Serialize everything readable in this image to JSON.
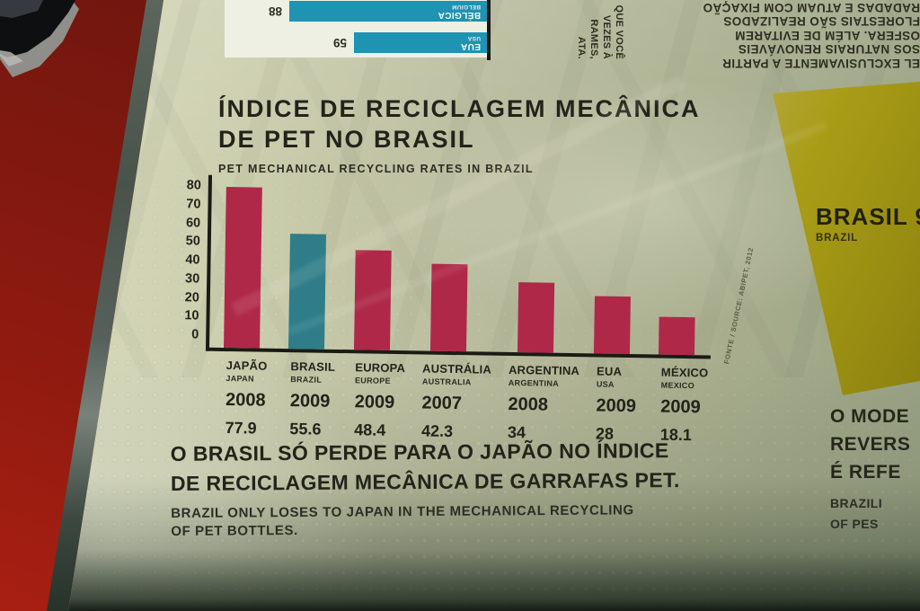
{
  "colors": {
    "panel_bg": "#c2c5a6",
    "bar_crimson": "#af2848",
    "bar_teal": "#2e7d89",
    "mini_bar_teal": "#1f93b2",
    "yellow_box": "#a89c16",
    "red_wall": "#8e1a10",
    "ink": "#23231b"
  },
  "title": {
    "line1": "ÍNDICE DE RECICLAGEM MECÂNICA",
    "line2": "DE PET NO BRASIL",
    "subtitle": "PET MECHANICAL RECYCLING RATES IN BRAZIL"
  },
  "chart_data": [
    {
      "type": "bar",
      "title": "ÍNDICE DE RECICLAGEM MECÂNICA DE PET NO BRASIL",
      "subtitle": "PET MECHANICAL RECYCLING RATES IN BRAZIL",
      "ylim": [
        0,
        80
      ],
      "yticks": [
        80,
        70,
        60,
        50,
        40,
        30,
        20,
        10,
        0
      ],
      "grid": false,
      "legend": "none",
      "bars": [
        {
          "label": "JAPÃO",
          "label_en": "JAPAN",
          "year": "2008",
          "value": 77.9,
          "display": "77.9",
          "color": "#af2848"
        },
        {
          "label": "BRASIL",
          "label_en": "BRAZIL",
          "year": "2009",
          "value": 55.6,
          "display": "55.6",
          "color": "#2e7d89"
        },
        {
          "label": "EUROPA",
          "label_en": "EUROPE",
          "year": "2009",
          "value": 48.4,
          "display": "48.4",
          "color": "#af2848"
        },
        {
          "label": "AUSTRÁLIA",
          "label_en": "AUSTRALIA",
          "year": "2007",
          "value": 42.3,
          "display": "42.3",
          "color": "#af2848"
        },
        {
          "label": "ARGENTINA",
          "label_en": "ARGENTINA",
          "year": "2008",
          "value": 34,
          "display": "34",
          "color": "#af2848"
        },
        {
          "label": "EUA",
          "label_en": "USA",
          "year": "2009",
          "value": 28,
          "display": "28",
          "color": "#af2848"
        },
        {
          "label": "MÉXICO",
          "label_en": "MEXICO",
          "year": "2009",
          "value": 18.1,
          "display": "18.1",
          "color": "#af2848"
        }
      ],
      "source": "FONTE / SOURCE: ABIPET, 2012"
    },
    {
      "type": "bar",
      "orientation": "horizontal",
      "upside_down": true,
      "xlim": [
        0,
        100
      ],
      "bars": [
        {
          "label": "BÉLGICA",
          "label_en": "BELGIUM",
          "value": 88,
          "display": "88",
          "color": "#1f93b2"
        },
        {
          "label": "EUA",
          "label_en": "USA",
          "value": 59,
          "display": "59",
          "color": "#1f93b2"
        }
      ]
    }
  ],
  "source": {
    "text": "FONTE / SOURCE: ABIPET, 2012"
  },
  "bottom_text": {
    "pt1": "O BRASIL SÓ PERDE PARA O JAPÃO NO ÍNDICE",
    "pt2": "DE RECICLAGEM MECÂNICA DE GARRAFAS PET.",
    "en1": "BRAZIL ONLY LOSES TO JAPAN IN THE MECHANICAL RECYCLING",
    "en2": "OF PET BOTTLES."
  },
  "yellow_box": {
    "title": "BRASIL 9",
    "subtitle": "BRAZIL"
  },
  "right_text": {
    "lines_pt": [
      "O MODE",
      "REVERS",
      "É REFE"
    ],
    "lines_en": [
      "BRAZILI",
      "OF PES"
    ]
  },
  "fragments": {
    "vertical": [
      "QUE VOCÊ",
      "VEZES À",
      "RAMES,",
      "ATA."
    ],
    "upside_down": [
      "EL EXCLUSIVAMENTE A PARTIR",
      "SOS NATURAIS RENOVÁVEIS",
      "OSFERA. ALÉM DE EVITAREM",
      "FLORESTAIS SÃO REALIZADOS",
      "RADADAS E ATUAM COM FIXAÇÃO"
    ]
  }
}
